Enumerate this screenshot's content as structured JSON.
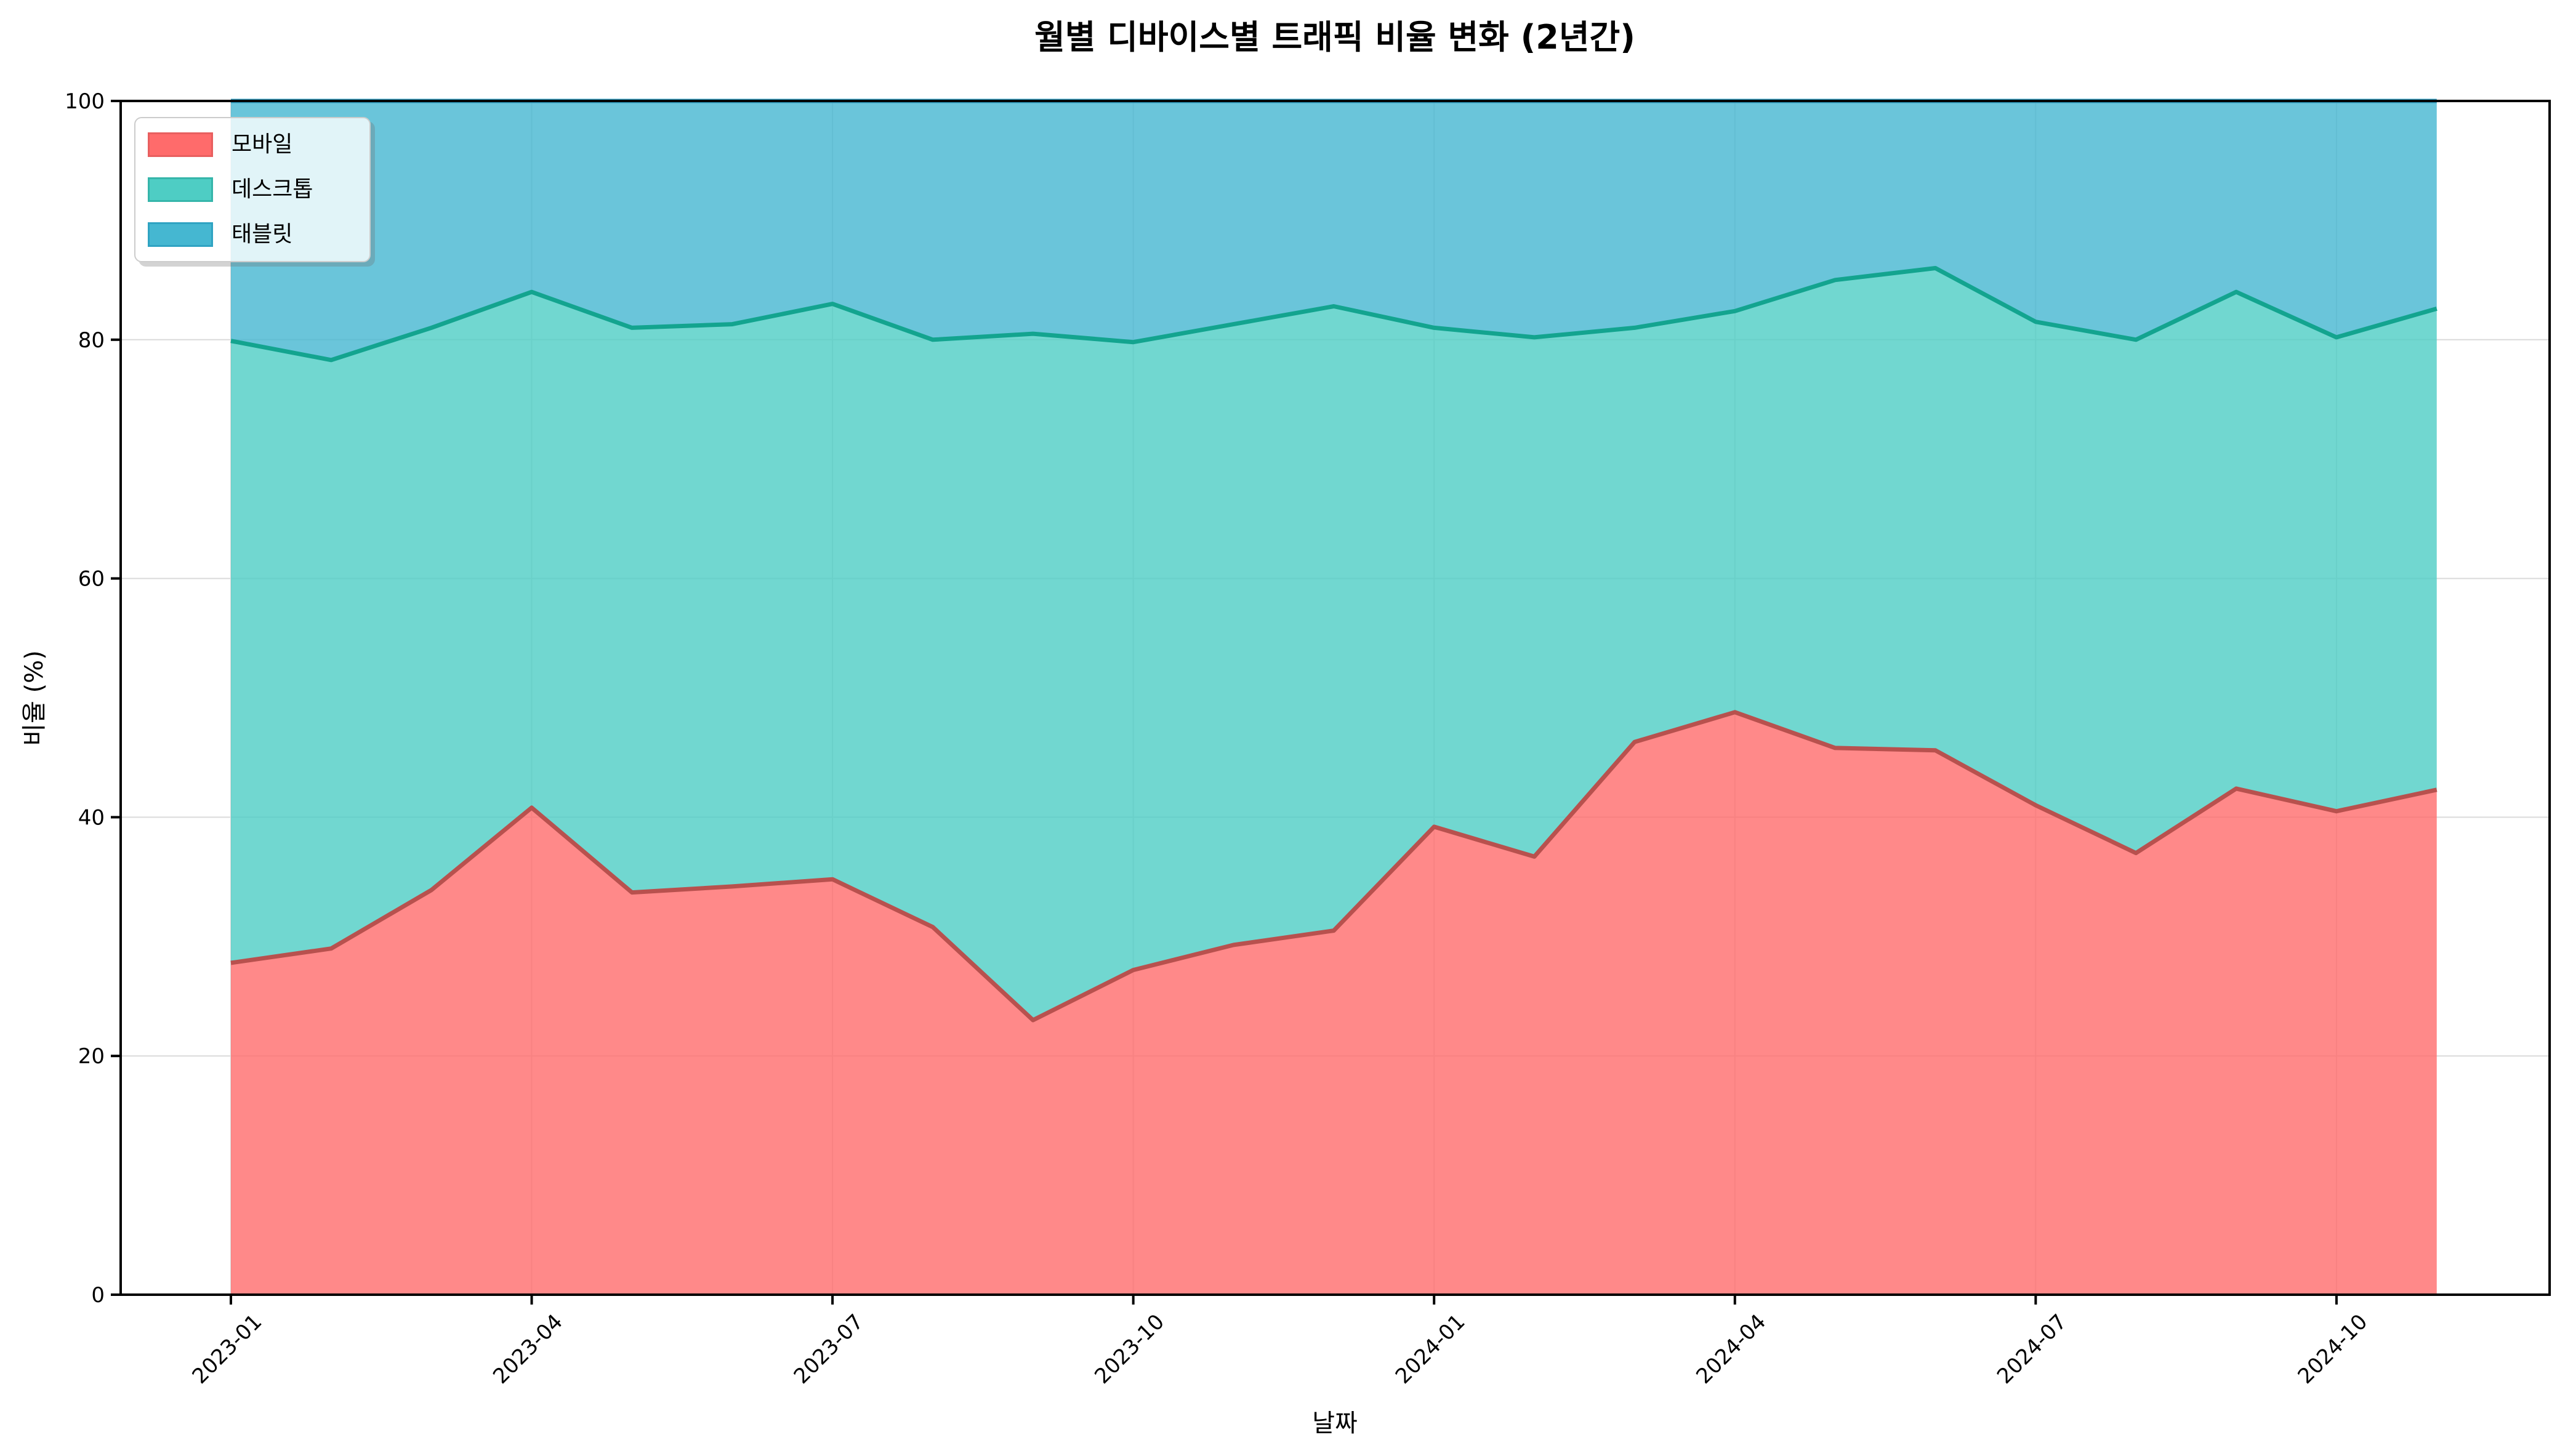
{
  "chart_data": {
    "type": "area",
    "stacked": true,
    "title": "월별 디바이스별 트래픽 비율 변화 (2년간)",
    "xlabel": "날짜",
    "ylabel": "비율 (%)",
    "ylim": [
      0,
      100
    ],
    "yticks": [
      0,
      20,
      40,
      60,
      80,
      100
    ],
    "grid": true,
    "legend_position": "upper-left",
    "fill_opacity": 0.8,
    "x": [
      "2023-01",
      "2023-02",
      "2023-03",
      "2023-04",
      "2023-05",
      "2023-06",
      "2023-07",
      "2023-08",
      "2023-09",
      "2023-10",
      "2023-11",
      "2023-12",
      "2024-01",
      "2024-02",
      "2024-03",
      "2024-04",
      "2024-05",
      "2024-06",
      "2024-07",
      "2024-08",
      "2024-09",
      "2024-10",
      "2024-11"
    ],
    "x_tick_labels": [
      "2023-01",
      "2023-04",
      "2023-07",
      "2023-10",
      "2024-01",
      "2024-04",
      "2024-07",
      "2024-10"
    ],
    "x_tick_indices": [
      0,
      3,
      6,
      9,
      12,
      15,
      18,
      21
    ],
    "series": [
      {
        "name": "모바일",
        "fill_color": "#FF6B6B",
        "line_color": "#B8514E",
        "swatch_border": "#E85F5F",
        "values": [
          27.8,
          29.0,
          33.9,
          40.8,
          33.7,
          34.2,
          34.8,
          30.8,
          23.0,
          27.2,
          29.3,
          30.5,
          39.2,
          36.7,
          46.3,
          48.8,
          45.8,
          45.6,
          41.0,
          37.0,
          42.4,
          40.5,
          42.3
        ]
      },
      {
        "name": "데스크톱",
        "fill_color": "#4ECDC4",
        "line_color": "#13A48F",
        "swatch_border": "#35B5AA",
        "values": [
          52.1,
          49.3,
          47.1,
          43.2,
          47.3,
          47.1,
          48.2,
          49.2,
          57.5,
          52.6,
          52.0,
          52.3,
          41.8,
          43.5,
          34.7,
          33.6,
          39.2,
          40.4,
          40.5,
          43.0,
          41.6,
          39.7,
          40.3
        ]
      },
      {
        "name": "태블릿",
        "fill_color": "#45B7D1",
        "line_color": "#2E9BBF",
        "swatch_border": "#2FA3C2",
        "values": [
          20.1,
          21.7,
          19.0,
          16.0,
          19.0,
          18.7,
          17.0,
          20.0,
          19.5,
          20.2,
          18.7,
          17.2,
          19.0,
          19.8,
          19.0,
          17.6,
          15.0,
          14.0,
          18.5,
          20.0,
          16.0,
          19.8,
          17.4
        ]
      }
    ]
  }
}
